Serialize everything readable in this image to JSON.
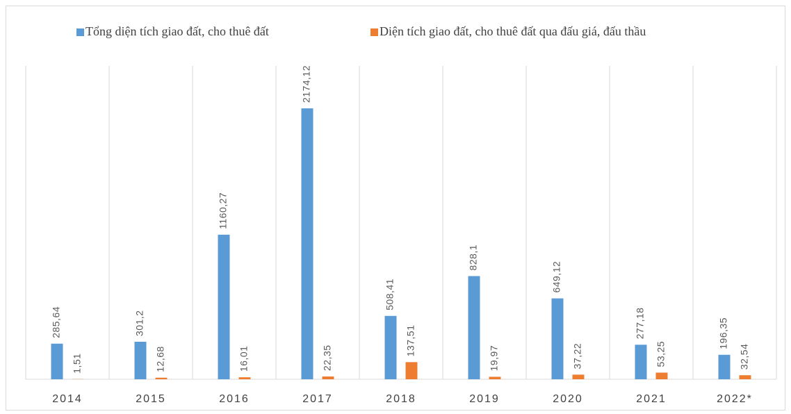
{
  "chart_data": {
    "type": "bar",
    "categories": [
      "2014",
      "2015",
      "2016",
      "2017",
      "2018",
      "2019",
      "2020",
      "2021",
      "2022*"
    ],
    "series": [
      {
        "name": "Tổng diện tích giao đất, cho thuê đất",
        "color": "#5b9bd5",
        "values": [
          285.64,
          301.2,
          1160.27,
          2174.12,
          508.41,
          828.1,
          649.12,
          277.18,
          196.35
        ],
        "value_labels": [
          "285,64",
          "301,2",
          "1160,27",
          "2174,12",
          "508,41",
          "828,1",
          "649,12",
          "277,18",
          "196,35"
        ]
      },
      {
        "name": "Diện tích giao đất, cho thuê đất qua đấu giá, đấu thầu",
        "color": "#ed7d31",
        "values": [
          1.51,
          12.68,
          16.01,
          22.35,
          137.51,
          19.97,
          37.22,
          53.25,
          32.54
        ],
        "value_labels": [
          "1,51",
          "12,68",
          "16,01",
          "22,35",
          "137,51",
          "19,97",
          "37,22",
          "53,25",
          "32,54"
        ]
      }
    ],
    "legend": "top"
  }
}
